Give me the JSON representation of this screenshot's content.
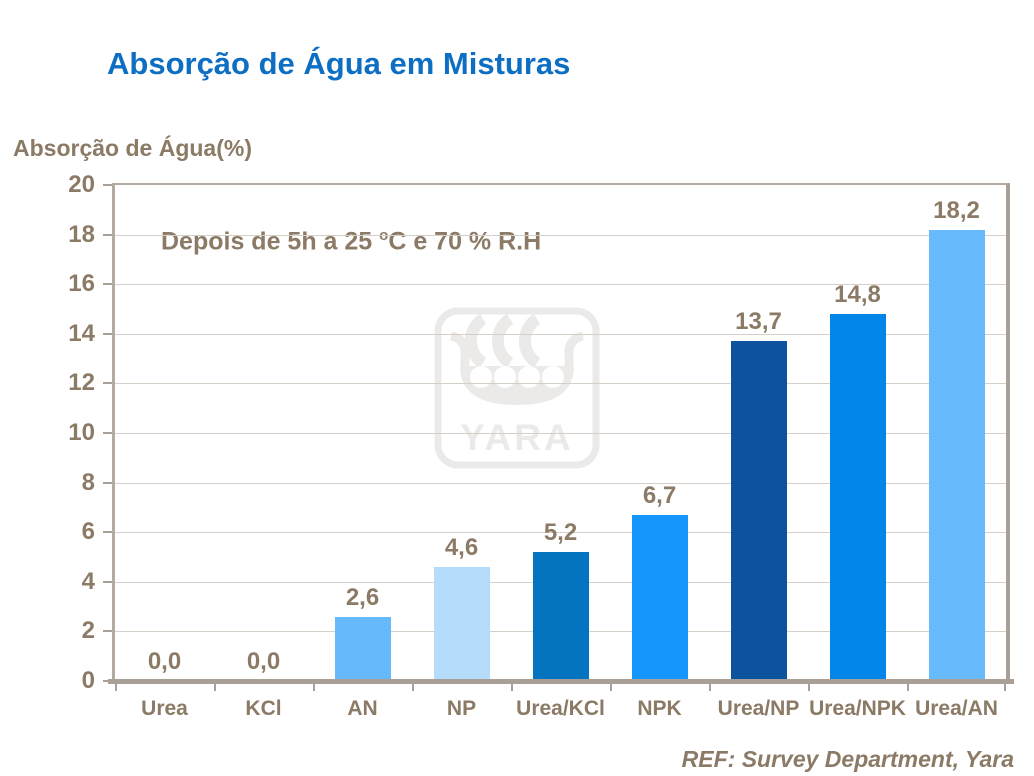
{
  "chart_data": {
    "type": "bar",
    "title": "Absorção de Água em Misturas",
    "ylabel": "Absorção de Água(%)",
    "xlabel": "",
    "annotation": "Depois de 5h a 25 °C e 70 % R.H",
    "annotation_parts": {
      "pre": "Depois de 5h a 25 ",
      "sup": "o",
      "post": "C e 70 % R.H"
    },
    "categories": [
      "Urea",
      "KCl",
      "AN",
      "NP",
      "Urea/KCl",
      "NPK",
      "Urea/NP",
      "Urea/NPK",
      "Urea/AN"
    ],
    "values": [
      0.0,
      0.0,
      2.6,
      4.6,
      5.2,
      6.7,
      13.7,
      14.8,
      18.2
    ],
    "value_labels": [
      "0,0",
      "0,0",
      "2,6",
      "4,6",
      "5,2",
      "6,7",
      "13,7",
      "14,8",
      "18,2"
    ],
    "bar_colors": [
      "none",
      "none",
      "#66b9fb",
      "#b5dcfb",
      "#0473c0",
      "#1496fd",
      "#0c529c",
      "#0386e9",
      "#67bafb"
    ],
    "ylim": [
      0,
      20
    ],
    "yticks": [
      0,
      2,
      4,
      6,
      8,
      10,
      12,
      14,
      16,
      18,
      20
    ],
    "grid": true,
    "legend": "none",
    "source": "REF: Survey Department, Yara",
    "watermark": "YARA"
  },
  "colors": {
    "title": "#0d6fc3",
    "axis_text": "#8b7a65",
    "gridline": "#d6cfc7",
    "plot_border": "#b3aaa1",
    "axis_line": "#a89f96",
    "watermark": "#eceae8"
  }
}
